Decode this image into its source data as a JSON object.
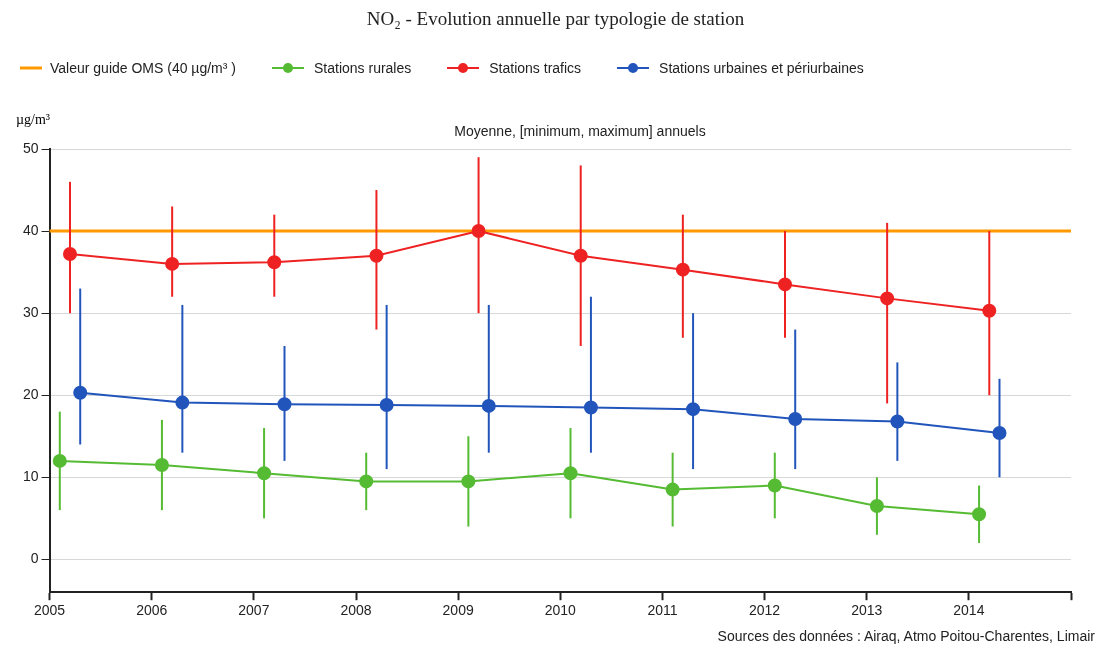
{
  "chart_data": {
    "type": "line",
    "title": "NO₂ - Evolution annuelle par typologie de station",
    "subtitle": "Moyenne, [minimum, maximum] annuels",
    "ylabel": "µg/m³",
    "annotations": [
      "Sources des données : Airaq, Atmo Poitou-Charentes, Limair"
    ],
    "xlim": [
      2005,
      2015
    ],
    "xticks": [
      2005,
      2006,
      2007,
      2008,
      2009,
      2010,
      2011,
      2012,
      2013,
      2014,
      {
        "value": 2015,
        "label": null
      }
    ],
    "ylim": [
      -4,
      50
    ],
    "yticks": [
      0,
      10,
      20,
      30,
      40,
      50
    ],
    "grid": "y",
    "legend": "top left",
    "marker": "circle",
    "line_style": "solid",
    "ref_lines": [
      {
        "axis": "y",
        "value": 40,
        "label": "Valeur guide OMS (40 µg/m³ )",
        "color": "#ff9900"
      }
    ],
    "series": [
      {
        "name": "Stations rurales",
        "color": "#55bb33",
        "x": [
          2005.1,
          2006.1,
          2007.1,
          2008.1,
          2009.1,
          2010.1,
          2011.1,
          2012.1,
          2013.1,
          2014.1
        ],
        "values": [
          12,
          11.5,
          10.5,
          9.5,
          9.5,
          10.5,
          8.5,
          9,
          6.5,
          5.5
        ],
        "errors": [
          [
            6,
            18
          ],
          [
            6,
            17
          ],
          [
            5,
            16
          ],
          [
            6,
            13
          ],
          [
            4,
            15
          ],
          [
            5,
            16
          ],
          [
            4,
            13
          ],
          [
            5,
            13
          ],
          [
            3,
            10
          ],
          [
            2,
            9
          ]
        ]
      },
      {
        "name": "Stations trafics",
        "color": "#ee2222",
        "x": [
          2005.2,
          2006.2,
          2007.2,
          2008.2,
          2009.2,
          2010.2,
          2011.2,
          2012.2,
          2013.2,
          2014.2
        ],
        "values": [
          37.2,
          36,
          36.2,
          37,
          40,
          37,
          35.3,
          33.5,
          31.8,
          30.3
        ],
        "errors": [
          [
            30,
            46
          ],
          [
            32,
            43
          ],
          [
            32,
            42
          ],
          [
            28,
            45
          ],
          [
            30,
            49
          ],
          [
            26,
            48
          ],
          [
            27,
            42
          ],
          [
            27,
            40
          ],
          [
            19,
            41
          ],
          [
            20,
            40
          ]
        ]
      },
      {
        "name": "Stations urbaines et périurbaines",
        "color": "#2255bb",
        "x": [
          2005.3,
          2006.3,
          2007.3,
          2008.3,
          2009.3,
          2010.3,
          2011.3,
          2012.3,
          2013.3,
          2014.3
        ],
        "values": [
          20.3,
          19.1,
          18.9,
          18.8,
          18.7,
          18.5,
          18.3,
          17.1,
          16.8,
          15.4
        ],
        "errors": [
          [
            14,
            33
          ],
          [
            13,
            31
          ],
          [
            12,
            26
          ],
          [
            11,
            31
          ],
          [
            13,
            31
          ],
          [
            13,
            32
          ],
          [
            11,
            30
          ],
          [
            11,
            28
          ],
          [
            12,
            24
          ],
          [
            10,
            22
          ]
        ]
      }
    ]
  }
}
